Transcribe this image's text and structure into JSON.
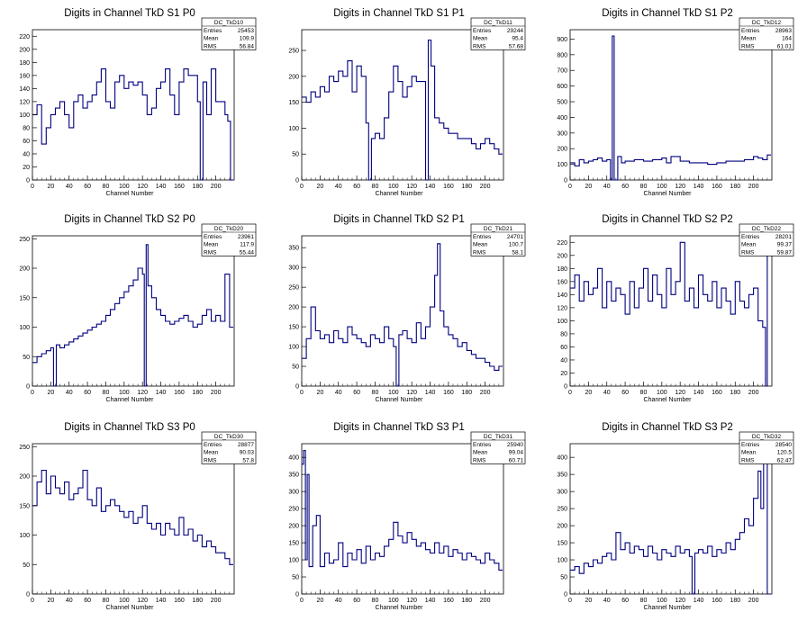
{
  "page": {
    "background": "#ffffff",
    "line_color": "#000080"
  },
  "chart_data": [
    {
      "type": "line",
      "title": "Digits in Channel TkD S1 P0",
      "xlabel": "Channel Number",
      "ylabel": "",
      "xlim": [
        0,
        220
      ],
      "ylim": [
        0,
        230
      ],
      "xticks": [
        0,
        20,
        40,
        60,
        80,
        100,
        120,
        140,
        160,
        180,
        200
      ],
      "yticks": [
        0,
        20,
        40,
        60,
        80,
        100,
        120,
        140,
        160,
        180,
        200,
        220
      ],
      "stats": {
        "name": "DC_TkD10",
        "rows": [
          [
            "Entries",
            "25453"
          ],
          [
            "Mean",
            "109.9"
          ],
          [
            "RMS",
            "56.84"
          ]
        ]
      },
      "x": [
        0,
        5,
        10,
        15,
        20,
        25,
        30,
        35,
        40,
        45,
        50,
        55,
        60,
        65,
        70,
        75,
        80,
        85,
        90,
        95,
        100,
        105,
        110,
        115,
        120,
        125,
        130,
        135,
        140,
        145,
        150,
        155,
        160,
        165,
        170,
        175,
        180,
        183,
        186,
        190,
        195,
        200,
        205,
        210,
        213,
        216
      ],
      "y": [
        100,
        115,
        55,
        80,
        100,
        110,
        120,
        100,
        80,
        120,
        130,
        110,
        120,
        130,
        150,
        170,
        120,
        110,
        150,
        160,
        140,
        150,
        145,
        150,
        130,
        100,
        110,
        140,
        150,
        170,
        130,
        100,
        150,
        170,
        160,
        160,
        120,
        0,
        150,
        100,
        170,
        120,
        120,
        100,
        90,
        0
      ]
    },
    {
      "type": "line",
      "title": "Digits in Channel TkD S1 P1",
      "xlabel": "Channel Number",
      "ylabel": "",
      "xlim": [
        0,
        220
      ],
      "ylim": [
        0,
        290
      ],
      "xticks": [
        0,
        20,
        40,
        60,
        80,
        100,
        120,
        140,
        160,
        180,
        200
      ],
      "yticks": [
        0,
        50,
        100,
        150,
        200,
        250
      ],
      "stats": {
        "name": "DC_TkD11",
        "rows": [
          [
            "Entries",
            "29244"
          ],
          [
            "Mean",
            "95.4"
          ],
          [
            "RMS",
            "57.68"
          ]
        ]
      },
      "x": [
        0,
        5,
        10,
        15,
        20,
        25,
        30,
        35,
        40,
        45,
        50,
        55,
        60,
        65,
        70,
        73,
        76,
        80,
        85,
        90,
        95,
        100,
        105,
        110,
        115,
        120,
        125,
        130,
        135,
        138,
        141,
        145,
        150,
        155,
        160,
        165,
        170,
        175,
        180,
        185,
        190,
        195,
        200,
        205,
        210,
        215
      ],
      "y": [
        160,
        150,
        170,
        160,
        180,
        170,
        200,
        190,
        210,
        200,
        230,
        170,
        220,
        200,
        110,
        0,
        80,
        90,
        80,
        120,
        170,
        220,
        190,
        160,
        180,
        200,
        190,
        190,
        0,
        270,
        220,
        120,
        110,
        100,
        90,
        90,
        80,
        80,
        80,
        70,
        60,
        70,
        80,
        70,
        60,
        50
      ]
    },
    {
      "type": "line",
      "title": "Digits in Channel TkD S1 P2",
      "xlabel": "Channel Number",
      "ylabel": "",
      "xlim": [
        0,
        220
      ],
      "ylim": [
        0,
        960
      ],
      "xticks": [
        0,
        20,
        40,
        60,
        80,
        100,
        120,
        140,
        160,
        180,
        200
      ],
      "yticks": [
        0,
        100,
        200,
        300,
        400,
        500,
        600,
        700,
        800,
        900
      ],
      "stats": {
        "name": "DC_TkD12",
        "rows": [
          [
            "Entries",
            "28963"
          ],
          [
            "Mean",
            "164"
          ],
          [
            "RMS",
            "61.01"
          ]
        ]
      },
      "x": [
        0,
        5,
        10,
        15,
        20,
        25,
        30,
        35,
        40,
        44,
        46,
        48,
        52,
        56,
        60,
        70,
        80,
        90,
        100,
        105,
        110,
        120,
        130,
        140,
        150,
        160,
        170,
        180,
        190,
        200,
        205,
        210,
        215
      ],
      "y": [
        110,
        90,
        130,
        110,
        120,
        130,
        140,
        120,
        130,
        0,
        920,
        0,
        150,
        110,
        120,
        130,
        120,
        130,
        140,
        110,
        150,
        120,
        110,
        110,
        100,
        110,
        120,
        120,
        130,
        150,
        140,
        130,
        160
      ]
    },
    {
      "type": "line",
      "title": "Digits in Channel TkD S2 P0",
      "xlabel": "Channel Number",
      "ylabel": "",
      "xlim": [
        0,
        220
      ],
      "ylim": [
        0,
        255
      ],
      "xticks": [
        0,
        20,
        40,
        60,
        80,
        100,
        120,
        140,
        160,
        180,
        200
      ],
      "yticks": [
        0,
        50,
        100,
        150,
        200,
        250
      ],
      "stats": {
        "name": "DC_TkD20",
        "rows": [
          [
            "Entries",
            "23961"
          ],
          [
            "Mean",
            "117.9"
          ],
          [
            "RMS",
            "55.44"
          ]
        ]
      },
      "x": [
        0,
        5,
        10,
        15,
        20,
        23,
        26,
        30,
        35,
        40,
        45,
        50,
        55,
        60,
        65,
        70,
        75,
        80,
        85,
        90,
        95,
        100,
        105,
        110,
        115,
        120,
        122,
        124,
        126,
        130,
        135,
        140,
        145,
        150,
        155,
        160,
        165,
        170,
        175,
        180,
        185,
        190,
        195,
        200,
        205,
        210,
        215
      ],
      "y": [
        40,
        50,
        55,
        60,
        65,
        0,
        70,
        65,
        70,
        75,
        80,
        85,
        90,
        95,
        100,
        105,
        110,
        120,
        130,
        140,
        150,
        160,
        170,
        180,
        200,
        190,
        0,
        240,
        170,
        150,
        130,
        120,
        110,
        105,
        110,
        115,
        120,
        110,
        100,
        105,
        120,
        130,
        110,
        120,
        110,
        190,
        100
      ]
    },
    {
      "type": "line",
      "title": "Digits in Channel TkD S2 P1",
      "xlabel": "Channel Number",
      "ylabel": "",
      "xlim": [
        0,
        220
      ],
      "ylim": [
        0,
        380
      ],
      "xticks": [
        0,
        20,
        40,
        60,
        80,
        100,
        120,
        140,
        160,
        180,
        200
      ],
      "yticks": [
        0,
        50,
        100,
        150,
        200,
        250,
        300,
        350
      ],
      "stats": {
        "name": "DC_TkD21",
        "rows": [
          [
            "Entries",
            "24701"
          ],
          [
            "Mean",
            "100.7"
          ],
          [
            "RMS",
            "58.1"
          ]
        ]
      },
      "x": [
        0,
        5,
        10,
        15,
        20,
        25,
        30,
        35,
        40,
        45,
        50,
        55,
        60,
        65,
        70,
        75,
        80,
        85,
        90,
        95,
        100,
        103,
        106,
        110,
        115,
        120,
        125,
        130,
        135,
        140,
        145,
        148,
        151,
        155,
        160,
        165,
        170,
        175,
        180,
        185,
        190,
        195,
        200,
        205,
        210,
        215
      ],
      "y": [
        70,
        120,
        200,
        140,
        120,
        130,
        110,
        140,
        120,
        110,
        150,
        130,
        120,
        110,
        100,
        130,
        120,
        110,
        150,
        120,
        100,
        0,
        130,
        140,
        120,
        110,
        160,
        120,
        150,
        200,
        280,
        360,
        190,
        150,
        130,
        120,
        100,
        110,
        90,
        80,
        70,
        70,
        60,
        50,
        40,
        50
      ]
    },
    {
      "type": "line",
      "title": "Digits in Channel TkD S2 P2",
      "xlabel": "Channel Number",
      "ylabel": "",
      "xlim": [
        0,
        220
      ],
      "ylim": [
        0,
        230
      ],
      "xticks": [
        0,
        20,
        40,
        60,
        80,
        100,
        120,
        140,
        160,
        180,
        200
      ],
      "yticks": [
        0,
        20,
        40,
        60,
        80,
        100,
        120,
        140,
        160,
        180,
        200,
        220
      ],
      "stats": {
        "name": "DC_TkD22",
        "rows": [
          [
            "Entries",
            "28201"
          ],
          [
            "Mean",
            "99.37"
          ],
          [
            "RMS",
            "59.87"
          ]
        ]
      },
      "x": [
        0,
        5,
        10,
        15,
        20,
        25,
        30,
        35,
        40,
        45,
        50,
        55,
        60,
        65,
        70,
        75,
        80,
        85,
        90,
        95,
        100,
        105,
        110,
        115,
        120,
        125,
        130,
        135,
        140,
        145,
        150,
        155,
        160,
        165,
        170,
        175,
        180,
        185,
        190,
        195,
        200,
        205,
        210,
        213,
        215
      ],
      "y": [
        150,
        170,
        130,
        160,
        140,
        150,
        180,
        120,
        160,
        130,
        150,
        140,
        110,
        160,
        120,
        150,
        180,
        130,
        170,
        140,
        120,
        180,
        140,
        160,
        220,
        130,
        150,
        120,
        170,
        140,
        130,
        160,
        120,
        150,
        130,
        110,
        160,
        130,
        120,
        140,
        150,
        100,
        90,
        0,
        200
      ]
    },
    {
      "type": "line",
      "title": "Digits in Channel TkD S3 P0",
      "xlabel": "Channel Number",
      "ylabel": "",
      "xlim": [
        0,
        220
      ],
      "ylim": [
        0,
        255
      ],
      "xticks": [
        0,
        20,
        40,
        60,
        80,
        100,
        120,
        140,
        160,
        180,
        200
      ],
      "yticks": [
        0,
        50,
        100,
        150,
        200,
        250
      ],
      "stats": {
        "name": "DC_TkD30",
        "rows": [
          [
            "Entries",
            "28877"
          ],
          [
            "Mean",
            "90.03"
          ],
          [
            "RMS",
            "57.8"
          ]
        ]
      },
      "x": [
        0,
        5,
        10,
        15,
        20,
        25,
        30,
        35,
        40,
        45,
        50,
        55,
        60,
        65,
        70,
        75,
        80,
        85,
        90,
        95,
        100,
        105,
        110,
        115,
        120,
        125,
        130,
        135,
        140,
        145,
        150,
        155,
        160,
        165,
        170,
        175,
        180,
        185,
        190,
        195,
        200,
        205,
        210,
        215
      ],
      "y": [
        150,
        190,
        210,
        170,
        200,
        180,
        170,
        190,
        160,
        170,
        180,
        210,
        160,
        150,
        180,
        140,
        150,
        160,
        150,
        140,
        130,
        140,
        120,
        130,
        150,
        120,
        110,
        120,
        100,
        120,
        110,
        100,
        130,
        100,
        110,
        90,
        100,
        80,
        90,
        80,
        70,
        70,
        60,
        50
      ]
    },
    {
      "type": "line",
      "title": "Digits in Channel TkD S3 P1",
      "xlabel": "Channel Number",
      "ylabel": "",
      "xlim": [
        0,
        220
      ],
      "ylim": [
        0,
        440
      ],
      "xticks": [
        0,
        20,
        40,
        60,
        80,
        100,
        120,
        140,
        160,
        180,
        200
      ],
      "yticks": [
        0,
        50,
        100,
        150,
        200,
        250,
        300,
        350,
        400
      ],
      "stats": {
        "name": "DC_TkD31",
        "rows": [
          [
            "Entries",
            "25940"
          ],
          [
            "Mean",
            "99.04"
          ],
          [
            "RMS",
            "60.71"
          ]
        ]
      },
      "x": [
        0,
        2,
        4,
        6,
        8,
        12,
        16,
        20,
        25,
        30,
        35,
        40,
        45,
        50,
        55,
        60,
        65,
        70,
        75,
        80,
        85,
        90,
        95,
        100,
        105,
        110,
        115,
        120,
        125,
        130,
        135,
        140,
        145,
        150,
        155,
        160,
        165,
        170,
        175,
        180,
        185,
        190,
        195,
        200,
        205,
        210,
        215
      ],
      "y": [
        380,
        420,
        100,
        350,
        80,
        200,
        230,
        80,
        120,
        90,
        100,
        150,
        80,
        120,
        100,
        130,
        90,
        140,
        100,
        120,
        110,
        140,
        160,
        210,
        170,
        150,
        180,
        160,
        140,
        150,
        130,
        120,
        150,
        120,
        140,
        110,
        130,
        120,
        100,
        120,
        110,
        100,
        90,
        120,
        100,
        90,
        70
      ]
    },
    {
      "type": "line",
      "title": "Digits in Channel TkD S3 P2",
      "xlabel": "Channel Number",
      "ylabel": "",
      "xlim": [
        0,
        220
      ],
      "ylim": [
        0,
        440
      ],
      "xticks": [
        0,
        20,
        40,
        60,
        80,
        100,
        120,
        140,
        160,
        180,
        200
      ],
      "yticks": [
        0,
        50,
        100,
        150,
        200,
        250,
        300,
        350,
        400
      ],
      "stats": {
        "name": "DC_TkD32",
        "rows": [
          [
            "Entries",
            "28540"
          ],
          [
            "Mean",
            "120.5"
          ],
          [
            "RMS",
            "62.47"
          ]
        ]
      },
      "x": [
        0,
        5,
        10,
        15,
        20,
        25,
        30,
        35,
        40,
        45,
        50,
        55,
        60,
        65,
        70,
        75,
        80,
        85,
        90,
        95,
        100,
        105,
        110,
        115,
        120,
        125,
        130,
        133,
        136,
        140,
        145,
        150,
        155,
        160,
        165,
        170,
        175,
        180,
        185,
        190,
        195,
        200,
        205,
        208,
        211,
        215
      ],
      "y": [
        70,
        80,
        60,
        90,
        80,
        100,
        90,
        110,
        120,
        100,
        180,
        130,
        150,
        120,
        140,
        130,
        110,
        140,
        120,
        100,
        130,
        120,
        110,
        140,
        120,
        130,
        110,
        0,
        120,
        130,
        120,
        140,
        110,
        130,
        120,
        150,
        130,
        160,
        180,
        220,
        200,
        280,
        360,
        250,
        400,
        0
      ]
    }
  ]
}
